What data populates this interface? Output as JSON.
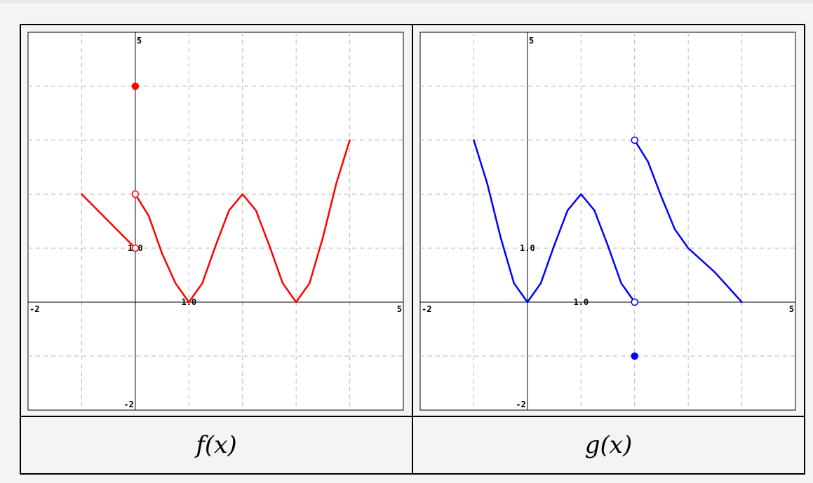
{
  "chart_data": [
    {
      "type": "line",
      "caption": "f(x)",
      "color": "#ff0000",
      "xlim": [
        -2,
        5
      ],
      "ylim": [
        -2,
        5
      ],
      "grid": true,
      "tick_labels": {
        "xmin": "-2",
        "xmax": "5",
        "ymin": "-2",
        "ymax": "5",
        "x_one": "1.0",
        "y_one": "1.0"
      },
      "series": [
        {
          "values": [
            [
              -1,
              2
            ],
            [
              -0.5,
              1.5
            ],
            [
              0,
              1
            ]
          ]
        },
        {
          "values": [
            [
              0,
              2
            ],
            [
              0.25,
              1.6
            ],
            [
              0.5,
              0.9
            ],
            [
              0.75,
              0.35
            ],
            [
              1,
              0
            ],
            [
              1.25,
              0.35
            ],
            [
              1.5,
              1.05
            ],
            [
              1.75,
              1.7
            ],
            [
              2,
              2
            ],
            [
              2.25,
              1.7
            ],
            [
              2.5,
              1.05
            ],
            [
              2.75,
              0.35
            ],
            [
              3,
              0
            ],
            [
              3.25,
              0.35
            ],
            [
              3.5,
              1.2
            ],
            [
              3.75,
              2.2
            ],
            [
              4,
              3
            ]
          ]
        }
      ],
      "points": [
        {
          "x": 0,
          "y": 4,
          "filled": true
        },
        {
          "x": 0,
          "y": 2,
          "filled": false
        },
        {
          "x": 0,
          "y": 1,
          "filled": false
        }
      ]
    },
    {
      "type": "line",
      "caption": "g(x)",
      "color": "#0000ff",
      "xlim": [
        -2,
        5
      ],
      "ylim": [
        -2,
        5
      ],
      "grid": true,
      "tick_labels": {
        "xmin": "-2",
        "xmax": "5",
        "ymin": "-2",
        "ymax": "5",
        "x_one": "1.0",
        "y_one": "1.0"
      },
      "series": [
        {
          "values": [
            [
              -1,
              3
            ],
            [
              -0.75,
              2.2
            ],
            [
              -0.5,
              1.2
            ],
            [
              -0.25,
              0.35
            ],
            [
              0,
              0
            ],
            [
              0.25,
              0.35
            ],
            [
              0.5,
              1.05
            ],
            [
              0.75,
              1.7
            ],
            [
              1,
              2
            ],
            [
              1.25,
              1.7
            ],
            [
              1.5,
              1.05
            ],
            [
              1.75,
              0.35
            ],
            [
              2,
              0
            ]
          ]
        },
        {
          "values": [
            [
              2,
              3
            ],
            [
              2.25,
              2.6
            ],
            [
              2.5,
              1.95
            ],
            [
              2.75,
              1.35
            ],
            [
              3,
              1
            ],
            [
              3.5,
              0.55
            ],
            [
              4,
              0
            ]
          ]
        }
      ],
      "points": [
        {
          "x": 2,
          "y": 3,
          "filled": false
        },
        {
          "x": 2,
          "y": 0,
          "filled": false
        },
        {
          "x": 2,
          "y": -1,
          "filled": true
        }
      ]
    }
  ]
}
